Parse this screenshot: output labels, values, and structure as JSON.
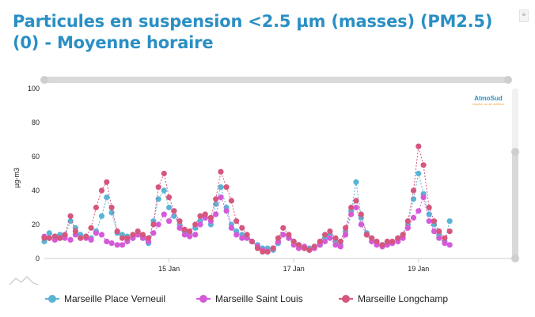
{
  "page": {
    "title": "Particules en suspension <2.5 µm (masses) (PM2.5) (0) - Moyenne horaire",
    "logo_text": "AtmoSud",
    "logo_tagline": "respirer un air meilleur"
  },
  "colors": {
    "verneuil": "#5ab4d6",
    "saint_louis": "#d55ad9",
    "longchamp": "#d5577d",
    "scroll": "#d9d9d9"
  },
  "chart_data": {
    "type": "line",
    "ylabel": "µg-m3",
    "ylim": [
      0,
      100
    ],
    "yticks": [
      0,
      20,
      40,
      60,
      80,
      100
    ],
    "xlim": [
      13.0,
      20.5
    ],
    "xticks": [
      {
        "value": 15,
        "label": "15 Jan"
      },
      {
        "value": 17,
        "label": "17 Jan"
      },
      {
        "value": 19,
        "label": "19 Jan"
      }
    ],
    "legend_position": "bottom",
    "series": [
      {
        "name": "Marseille Place Verneuil",
        "x": [
          13.0,
          13.08,
          13.17,
          13.25,
          13.33,
          13.42,
          13.5,
          13.58,
          13.67,
          13.75,
          13.83,
          13.92,
          14.0,
          14.08,
          14.17,
          14.25,
          14.33,
          14.42,
          14.5,
          14.58,
          14.67,
          14.75,
          14.83,
          14.92,
          15.0,
          15.08,
          15.17,
          15.25,
          15.33,
          15.42,
          15.5,
          15.58,
          15.67,
          15.75,
          15.83,
          15.92,
          16.0,
          16.08,
          16.17,
          16.25,
          16.33,
          16.42,
          16.5,
          16.58,
          16.67,
          16.75,
          16.83,
          16.92,
          17.0,
          17.08,
          17.17,
          17.25,
          17.33,
          17.42,
          17.5,
          17.58,
          17.67,
          17.75,
          17.83,
          17.92,
          18.0,
          18.08,
          18.17,
          18.25,
          18.33,
          18.42,
          18.5,
          18.58,
          18.67,
          18.75,
          18.83,
          18.92,
          19.0,
          19.08,
          19.17,
          19.25,
          19.33,
          19.42,
          19.5
        ],
        "y": [
          10,
          15,
          13,
          14,
          13,
          22,
          18,
          14,
          13,
          12,
          16,
          25,
          36,
          27,
          15,
          14,
          13,
          12,
          14,
          12,
          9,
          22,
          35,
          40,
          30,
          25,
          20,
          16,
          15,
          18,
          22,
          24,
          20,
          32,
          42,
          30,
          20,
          16,
          14,
          12,
          10,
          8,
          6,
          6,
          5,
          9,
          14,
          12,
          10,
          8,
          7,
          6,
          7,
          8,
          12,
          14,
          10,
          8,
          16,
          28,
          45,
          24,
          15,
          12,
          10,
          8,
          10,
          9,
          12,
          14,
          20,
          35,
          50,
          38,
          26,
          20,
          14,
          10,
          22
        ],
        "color": "#5ab4d6"
      },
      {
        "name": "Marseille Saint Louis",
        "x": [
          13.0,
          13.08,
          13.17,
          13.25,
          13.33,
          13.42,
          13.5,
          13.58,
          13.67,
          13.75,
          13.83,
          13.92,
          14.0,
          14.08,
          14.17,
          14.25,
          14.33,
          14.42,
          14.5,
          14.58,
          14.67,
          14.75,
          14.83,
          14.92,
          15.0,
          15.08,
          15.17,
          15.25,
          15.33,
          15.42,
          15.5,
          15.58,
          15.67,
          15.75,
          15.83,
          15.92,
          16.0,
          16.08,
          16.17,
          16.25,
          16.33,
          16.42,
          16.5,
          16.58,
          16.67,
          16.75,
          16.83,
          16.92,
          17.0,
          17.08,
          17.17,
          17.25,
          17.33,
          17.42,
          17.5,
          17.58,
          17.67,
          17.75,
          17.83,
          17.92,
          18.0,
          18.08,
          18.17,
          18.25,
          18.33,
          18.42,
          18.5,
          18.58,
          18.67,
          18.75,
          18.83,
          18.92,
          19.0,
          19.08,
          19.17,
          19.25,
          19.33,
          19.42,
          19.5
        ],
        "y": [
          13,
          12,
          11,
          12,
          12,
          11,
          14,
          12,
          12,
          11,
          15,
          14,
          10,
          9,
          8,
          8,
          10,
          12,
          14,
          12,
          10,
          15,
          20,
          26,
          22,
          28,
          18,
          14,
          13,
          14,
          20,
          24,
          22,
          26,
          36,
          28,
          18,
          14,
          12,
          12,
          10,
          7,
          5,
          4,
          6,
          10,
          14,
          12,
          8,
          6,
          7,
          5,
          6,
          8,
          10,
          12,
          8,
          7,
          14,
          26,
          30,
          20,
          14,
          10,
          8,
          7,
          8,
          9,
          10,
          12,
          18,
          24,
          28,
          36,
          22,
          16,
          12,
          9,
          8
        ],
        "color": "#d55ad9"
      },
      {
        "name": "Marseille Longchamp",
        "x": [
          13.0,
          13.08,
          13.17,
          13.25,
          13.33,
          13.42,
          13.5,
          13.58,
          13.67,
          13.75,
          13.83,
          13.92,
          14.0,
          14.08,
          14.17,
          14.25,
          14.33,
          14.42,
          14.5,
          14.58,
          14.67,
          14.75,
          14.83,
          14.92,
          15.0,
          15.08,
          15.17,
          15.25,
          15.33,
          15.42,
          15.5,
          15.58,
          15.67,
          15.75,
          15.83,
          15.92,
          16.0,
          16.08,
          16.17,
          16.25,
          16.33,
          16.42,
          16.5,
          16.58,
          16.67,
          16.75,
          16.83,
          16.92,
          17.0,
          17.08,
          17.17,
          17.25,
          17.33,
          17.42,
          17.5,
          17.58,
          17.67,
          17.75,
          17.83,
          17.92,
          18.0,
          18.08,
          18.17,
          18.25,
          18.33,
          18.42,
          18.5,
          18.58,
          18.67,
          18.75,
          18.83,
          18.92,
          19.0,
          19.08,
          19.17,
          19.25,
          19.33,
          19.42,
          19.5
        ],
        "y": [
          12,
          12,
          13,
          12,
          14,
          25,
          16,
          12,
          13,
          18,
          30,
          40,
          45,
          30,
          16,
          12,
          12,
          14,
          16,
          14,
          12,
          20,
          42,
          50,
          36,
          28,
          22,
          17,
          16,
          20,
          25,
          26,
          24,
          35,
          51,
          42,
          34,
          22,
          18,
          14,
          10,
          6,
          4,
          4,
          6,
          12,
          18,
          14,
          10,
          8,
          6,
          5,
          7,
          10,
          14,
          16,
          12,
          10,
          18,
          30,
          34,
          26,
          14,
          12,
          10,
          8,
          10,
          10,
          12,
          14,
          22,
          40,
          66,
          55,
          30,
          22,
          16,
          12,
          16
        ],
        "color": "#d5577d"
      }
    ]
  }
}
